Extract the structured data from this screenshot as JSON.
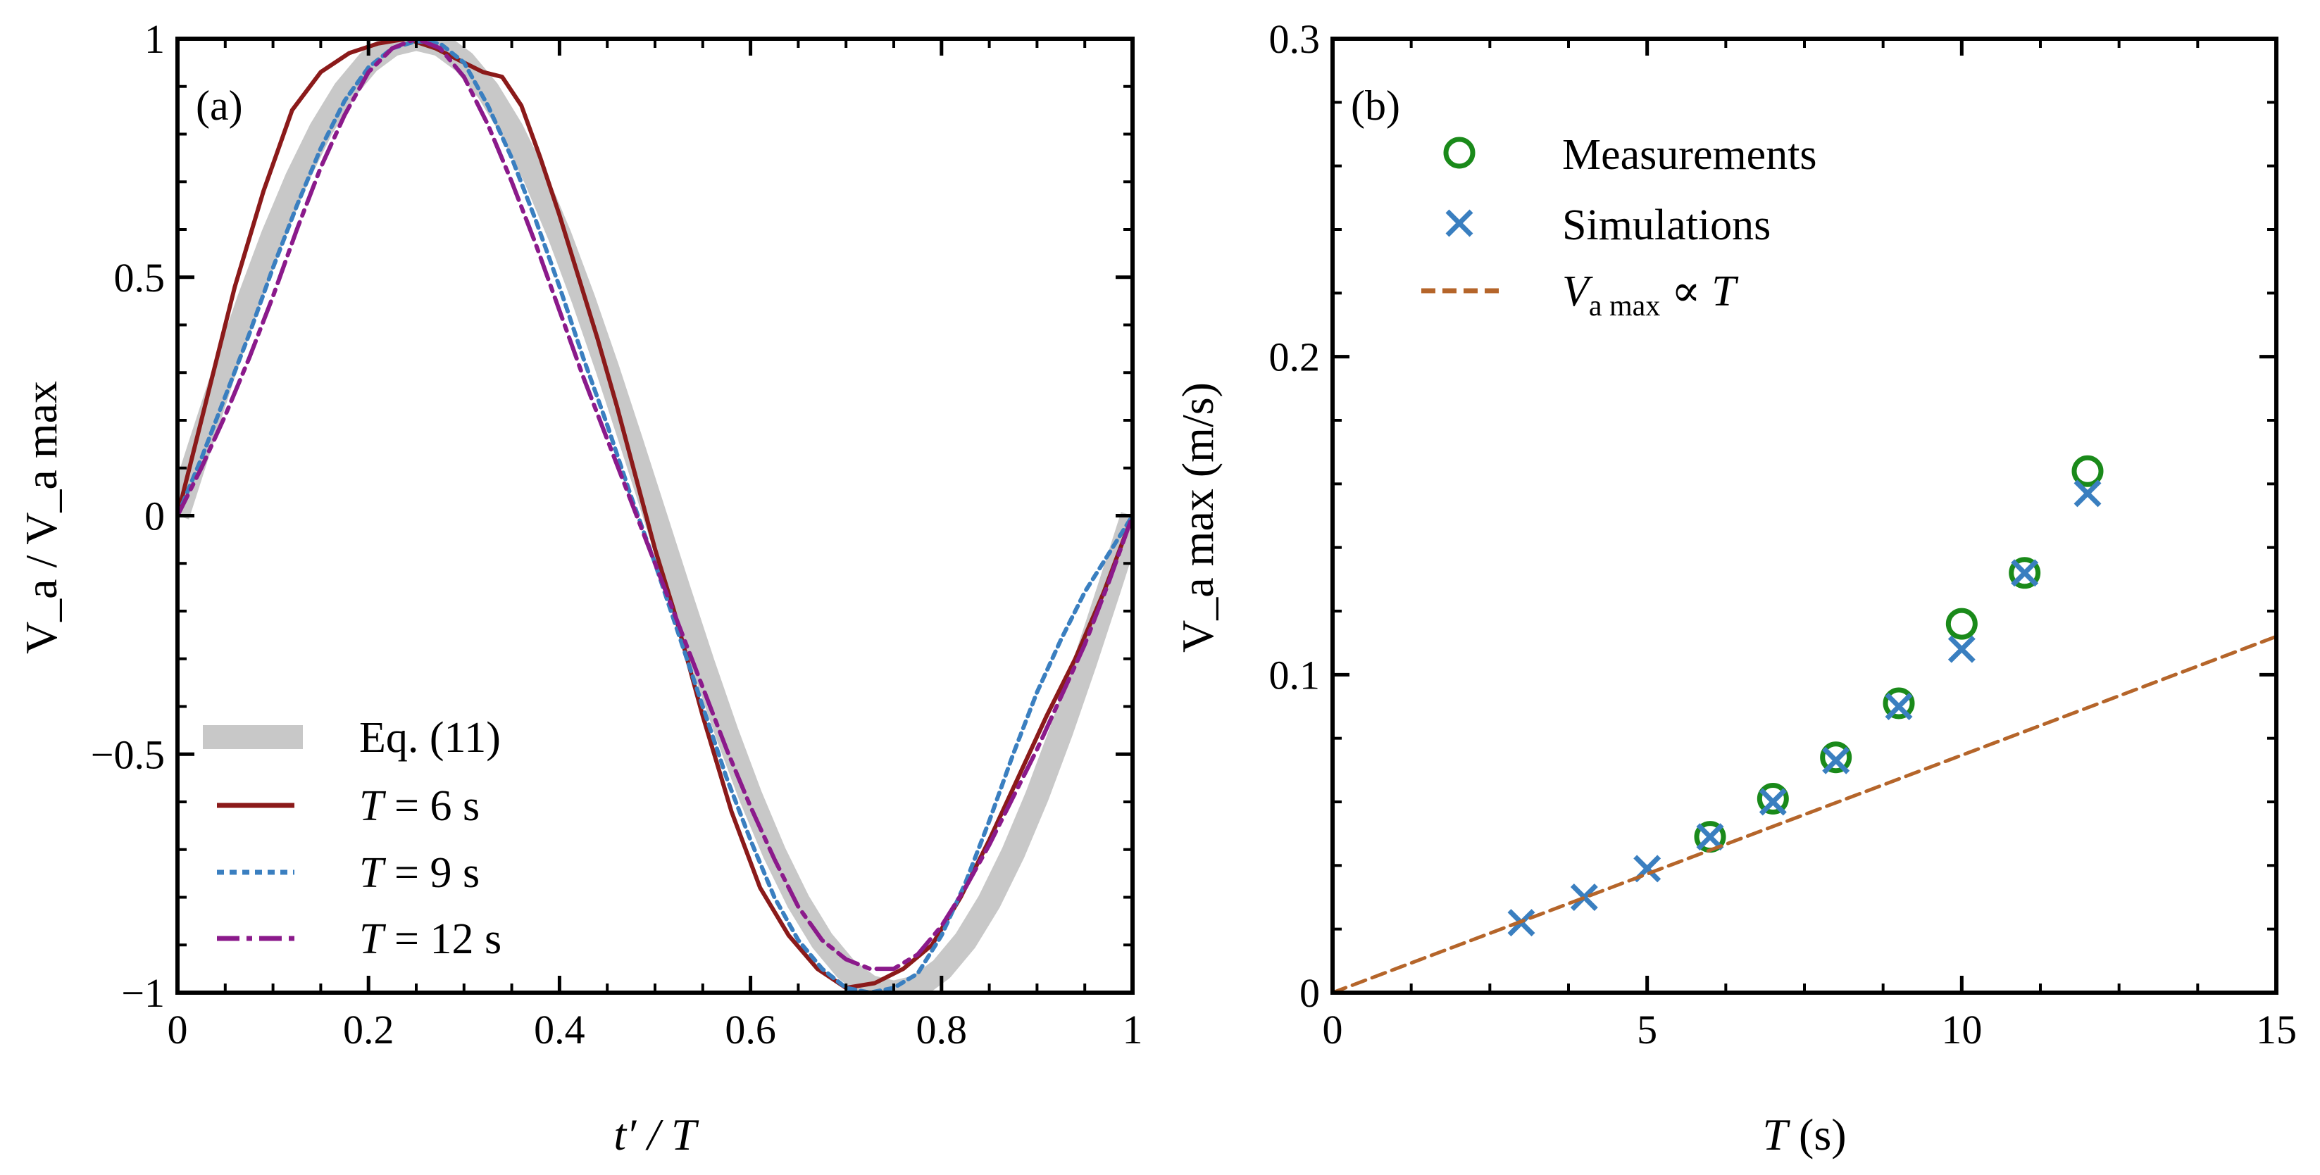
{
  "colors": {
    "eq11": "#c8c8c8",
    "T6": "#8b1a1a",
    "T9": "#3a7fc0",
    "T12": "#8b1a8b",
    "measurements": "#1a8a1a",
    "simulations": "#3a7fc0",
    "proportional": "#b5652a"
  },
  "chart_data": [
    {
      "type": "line",
      "panel_label": "(a)",
      "xlabel": "t′ / T",
      "ylabel": "V_a / V_a max",
      "xlim": [
        0,
        1
      ],
      "ylim": [
        -1,
        1
      ],
      "xticks": [
        0,
        0.2,
        0.4,
        0.6,
        0.8,
        1
      ],
      "xtick_labels": [
        "0",
        "0.2",
        "0.4",
        "0.6",
        "0.8",
        "1"
      ],
      "yticks": [
        -1,
        -0.5,
        0,
        0.5,
        1
      ],
      "ytick_labels": [
        "−1",
        "−0.5",
        "0",
        "0.5",
        "1"
      ],
      "legend": {
        "position": "lower-left",
        "entries": [
          {
            "key": "eq11",
            "label": "Eq. (11)"
          },
          {
            "key": "T6",
            "label_italic": "T",
            "label_rest": " = 6 s"
          },
          {
            "key": "T9",
            "label_italic": "T",
            "label_rest": " = 9 s"
          },
          {
            "key": "T12",
            "label_italic": "T",
            "label_rest": " = 12 s"
          }
        ]
      },
      "series": [
        {
          "name": "Eq. (11)",
          "key": "eq11",
          "style": "band",
          "x": [
            0,
            0.025,
            0.05,
            0.075,
            0.1,
            0.125,
            0.15,
            0.175,
            0.2,
            0.225,
            0.25,
            0.275,
            0.3,
            0.325,
            0.35,
            0.375,
            0.4,
            0.425,
            0.45,
            0.475,
            0.5,
            0.525,
            0.55,
            0.575,
            0.6,
            0.625,
            0.65,
            0.675,
            0.7,
            0.725,
            0.75,
            0.775,
            0.8,
            0.825,
            0.85,
            0.875,
            0.9,
            0.925,
            0.95,
            0.975,
            1
          ],
          "y": [
            0,
            0.156,
            0.309,
            0.454,
            0.588,
            0.707,
            0.809,
            0.891,
            0.951,
            0.988,
            1,
            0.988,
            0.951,
            0.891,
            0.809,
            0.707,
            0.588,
            0.454,
            0.309,
            0.156,
            0,
            -0.156,
            -0.309,
            -0.454,
            -0.588,
            -0.707,
            -0.809,
            -0.891,
            -0.951,
            -0.988,
            -1,
            -0.988,
            -0.951,
            -0.891,
            -0.809,
            -0.707,
            -0.588,
            -0.454,
            -0.309,
            -0.156,
            0
          ]
        },
        {
          "name": "T = 6 s",
          "key": "T6",
          "style": "solid",
          "x": [
            0,
            0.03,
            0.06,
            0.09,
            0.12,
            0.15,
            0.18,
            0.21,
            0.24,
            0.27,
            0.3,
            0.32,
            0.34,
            0.36,
            0.38,
            0.4,
            0.42,
            0.44,
            0.46,
            0.48,
            0.5,
            0.52,
            0.55,
            0.58,
            0.61,
            0.64,
            0.67,
            0.7,
            0.73,
            0.76,
            0.79,
            0.82,
            0.85,
            0.88,
            0.91,
            0.94,
            0.97,
            1
          ],
          "y": [
            0,
            0.24,
            0.48,
            0.68,
            0.85,
            0.93,
            0.97,
            0.99,
            1,
            0.98,
            0.95,
            0.93,
            0.92,
            0.86,
            0.75,
            0.63,
            0.5,
            0.37,
            0.23,
            0.08,
            -0.07,
            -0.2,
            -0.42,
            -0.62,
            -0.78,
            -0.88,
            -0.95,
            -0.99,
            -0.98,
            -0.95,
            -0.9,
            -0.8,
            -0.68,
            -0.55,
            -0.42,
            -0.3,
            -0.16,
            0
          ]
        },
        {
          "name": "T = 9 s",
          "key": "T9",
          "style": "dotted",
          "x": [
            0,
            0.025,
            0.05,
            0.075,
            0.1,
            0.125,
            0.15,
            0.175,
            0.2,
            0.225,
            0.25,
            0.275,
            0.3,
            0.325,
            0.35,
            0.375,
            0.4,
            0.425,
            0.45,
            0.475,
            0.5,
            0.525,
            0.55,
            0.575,
            0.6,
            0.625,
            0.65,
            0.675,
            0.7,
            0.725,
            0.75,
            0.775,
            0.8,
            0.825,
            0.85,
            0.875,
            0.9,
            0.925,
            0.95,
            0.975,
            1
          ],
          "y": [
            0,
            0.12,
            0.25,
            0.38,
            0.52,
            0.65,
            0.77,
            0.87,
            0.94,
            0.98,
            0.995,
            0.99,
            0.95,
            0.86,
            0.75,
            0.62,
            0.48,
            0.33,
            0.19,
            0.04,
            -0.1,
            -0.25,
            -0.4,
            -0.55,
            -0.68,
            -0.8,
            -0.89,
            -0.95,
            -0.99,
            -1,
            -0.99,
            -0.96,
            -0.88,
            -0.77,
            -0.64,
            -0.5,
            -0.37,
            -0.26,
            -0.16,
            -0.08,
            0
          ]
        },
        {
          "name": "T = 12 s",
          "key": "T12",
          "style": "dashdot",
          "x": [
            0,
            0.025,
            0.05,
            0.075,
            0.1,
            0.125,
            0.15,
            0.175,
            0.2,
            0.225,
            0.25,
            0.275,
            0.3,
            0.325,
            0.35,
            0.375,
            0.4,
            0.425,
            0.45,
            0.475,
            0.5,
            0.525,
            0.55,
            0.575,
            0.6,
            0.625,
            0.65,
            0.675,
            0.7,
            0.725,
            0.75,
            0.775,
            0.8,
            0.825,
            0.85,
            0.875,
            0.9,
            0.925,
            0.95,
            0.975,
            1
          ],
          "y": [
            0,
            0.1,
            0.21,
            0.33,
            0.46,
            0.6,
            0.73,
            0.84,
            0.93,
            0.98,
            1,
            0.98,
            0.92,
            0.82,
            0.7,
            0.57,
            0.43,
            0.29,
            0.16,
            0.03,
            -0.1,
            -0.23,
            -0.36,
            -0.49,
            -0.61,
            -0.72,
            -0.82,
            -0.89,
            -0.93,
            -0.95,
            -0.95,
            -0.92,
            -0.86,
            -0.78,
            -0.69,
            -0.59,
            -0.49,
            -0.38,
            -0.27,
            -0.14,
            0
          ]
        }
      ]
    },
    {
      "type": "scatter",
      "panel_label": "(b)",
      "xlabel_italic": "T",
      "xlabel_rest": " (s)",
      "ylabel": "V_a max (m/s)",
      "xlim": [
        0,
        15
      ],
      "ylim": [
        0,
        0.3
      ],
      "xticks": [
        0,
        5,
        10,
        15
      ],
      "xtick_labels": [
        "0",
        "5",
        "10",
        "15"
      ],
      "yticks": [
        0,
        0.1,
        0.2,
        0.3
      ],
      "ytick_labels": [
        "0",
        "0.1",
        "0.2",
        "0.3"
      ],
      "legend": {
        "position": "top-left",
        "entries": [
          {
            "key": "measurements",
            "label": "Measurements"
          },
          {
            "key": "simulations",
            "label": "Simulations"
          },
          {
            "key": "proportional",
            "label_sym": "V",
            "label_sub": "a max",
            "label_rest": " ∝ ",
            "label_italic2": "T"
          }
        ]
      },
      "series": [
        {
          "name": "Measurements",
          "key": "measurements",
          "marker": "circle",
          "x": [
            6,
            7,
            8,
            9,
            10,
            11,
            12
          ],
          "y": [
            0.049,
            0.061,
            0.074,
            0.091,
            0.116,
            0.132,
            0.164
          ]
        },
        {
          "name": "Simulations",
          "key": "simulations",
          "marker": "x",
          "x": [
            3,
            4,
            5,
            6,
            7,
            8,
            9,
            10,
            11,
            12
          ],
          "y": [
            0.022,
            0.03,
            0.039,
            0.049,
            0.06,
            0.073,
            0.09,
            0.108,
            0.132,
            0.157
          ]
        },
        {
          "name": "V_a max ∝ T",
          "key": "proportional",
          "style": "dashed",
          "x": [
            0,
            15
          ],
          "y": [
            0,
            0.112
          ]
        }
      ]
    }
  ]
}
